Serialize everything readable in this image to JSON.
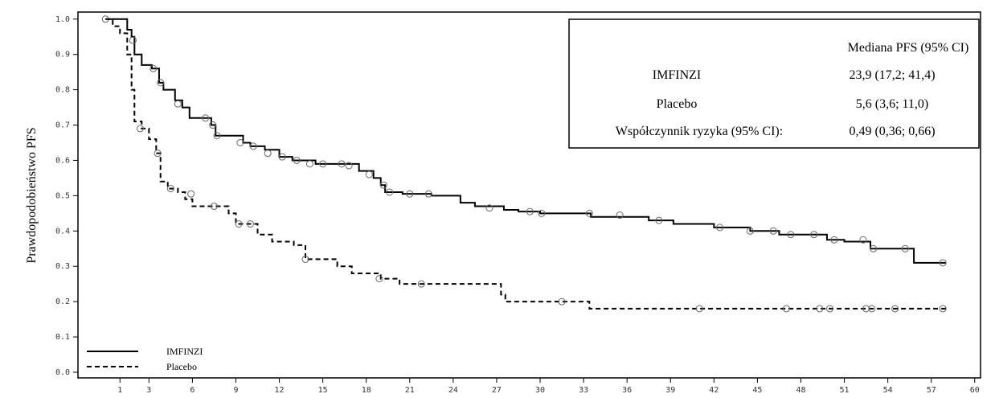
{
  "chart_data": {
    "type": "kaplan-meier",
    "y_label": "Prawdopodobieństwo PFS",
    "xlim": [
      -1.9,
      60.4
    ],
    "ylim": [
      -0.016,
      1.02
    ],
    "xticks": [
      1,
      3,
      6,
      9,
      12,
      15,
      18,
      21,
      24,
      27,
      30,
      33,
      36,
      39,
      42,
      45,
      48,
      51,
      54,
      57,
      60
    ],
    "yticks": [
      {
        "value": 0,
        "label": "0.0"
      },
      {
        "value": 0.1,
        "label": "0.1"
      },
      {
        "value": 0.2,
        "label": "0.2"
      },
      {
        "value": 0.3,
        "label": "0.3"
      },
      {
        "value": 0.4,
        "label": "0.4"
      },
      {
        "value": 0.5,
        "label": "0.5"
      },
      {
        "value": 0.6,
        "label": "0.6"
      },
      {
        "value": 0.7,
        "label": "0.7"
      },
      {
        "value": 0.8,
        "label": "0.8"
      },
      {
        "value": 0.9,
        "label": "0.9"
      },
      {
        "value": 1,
        "label": "1.0"
      }
    ],
    "series": [
      {
        "name": "IMFINZI",
        "color": "#000000",
        "dash": "solid",
        "x": [
          0,
          1.5,
          1.8,
          2,
          2.5,
          3.2,
          3.7,
          4,
          4.8,
          5.3,
          5.8,
          7.3,
          7.6,
          9.5,
          10,
          11,
          12,
          12.9,
          14.5,
          17.5,
          18.5,
          19,
          19.3,
          20.5,
          22.5,
          24.5,
          25.5,
          27.5,
          28.5,
          30,
          33.5,
          37.5,
          39.2,
          42,
          44.5,
          46.5,
          49.8,
          51,
          52.8,
          55.8,
          58
        ],
        "values": [
          1,
          0.97,
          0.95,
          0.9,
          0.87,
          0.86,
          0.82,
          0.8,
          0.77,
          0.75,
          0.72,
          0.7,
          0.67,
          0.65,
          0.64,
          0.63,
          0.61,
          0.6,
          0.59,
          0.57,
          0.55,
          0.53,
          0.51,
          0.505,
          0.5,
          0.48,
          0.47,
          0.46,
          0.455,
          0.45,
          0.44,
          0.43,
          0.42,
          0.41,
          0.4,
          0.39,
          0.375,
          0.37,
          0.35,
          0.31,
          0.31
        ],
        "censor_x": [
          0,
          1.9,
          3.3,
          3.8,
          5,
          6.9,
          7.4,
          7.7,
          9.3,
          10.2,
          11.2,
          12.2,
          13.2,
          14.1,
          15,
          16.3,
          16.8,
          18.2,
          19.2,
          19.6,
          21,
          22.3,
          26.5,
          29.3,
          30.1,
          33.4,
          35.5,
          38.2,
          42.4,
          44.5,
          46.1,
          47.3,
          48.9,
          50.3,
          52.3,
          53,
          55.2,
          57.8
        ],
        "censor_y": [
          1,
          0.94,
          0.86,
          0.82,
          0.76,
          0.72,
          0.7,
          0.67,
          0.65,
          0.64,
          0.62,
          0.61,
          0.6,
          0.59,
          0.59,
          0.59,
          0.585,
          0.56,
          0.53,
          0.51,
          0.505,
          0.505,
          0.465,
          0.455,
          0.45,
          0.45,
          0.445,
          0.43,
          0.41,
          0.4,
          0.4,
          0.39,
          0.39,
          0.375,
          0.375,
          0.35,
          0.35,
          0.31
        ]
      },
      {
        "name": "Placebo",
        "color": "#000000",
        "dash": "dashed",
        "x": [
          0,
          0.5,
          1,
          1.5,
          1.8,
          2,
          2.5,
          3,
          3.5,
          3.8,
          4.3,
          5,
          5.5,
          6,
          8.5,
          9,
          10.5,
          11.5,
          13,
          13.8,
          16,
          17,
          19,
          20.3,
          27.3,
          27.6,
          33.4,
          58
        ],
        "values": [
          1,
          0.98,
          0.96,
          0.9,
          0.8,
          0.71,
          0.69,
          0.66,
          0.62,
          0.54,
          0.52,
          0.51,
          0.49,
          0.47,
          0.45,
          0.42,
          0.39,
          0.37,
          0.36,
          0.32,
          0.3,
          0.28,
          0.265,
          0.25,
          0.22,
          0.2,
          0.18,
          0.18
        ],
        "censor_x": [
          2.4,
          3.6,
          4.5,
          5.9,
          7.5,
          9.2,
          10,
          13.8,
          18.9,
          21.8,
          31.5,
          41,
          47,
          49.3,
          50,
          52.5,
          52.9,
          54.5,
          57.8
        ],
        "censor_y": [
          0.69,
          0.62,
          0.52,
          0.505,
          0.47,
          0.42,
          0.42,
          0.32,
          0.265,
          0.25,
          0.2,
          0.18,
          0.18,
          0.18,
          0.18,
          0.18,
          0.18,
          0.18,
          0.18
        ]
      }
    ],
    "table": {
      "header": "Mediana PFS (95% CI)",
      "rows": [
        [
          "IMFINZI",
          "23,9 (17,2; 41,4)"
        ],
        [
          "Placebo",
          "5,6 (3,6; 11,0)"
        ],
        [
          "Współczynnik ryzyka (95% CI):",
          "0,49 (0,36; 0,66)"
        ]
      ]
    }
  }
}
